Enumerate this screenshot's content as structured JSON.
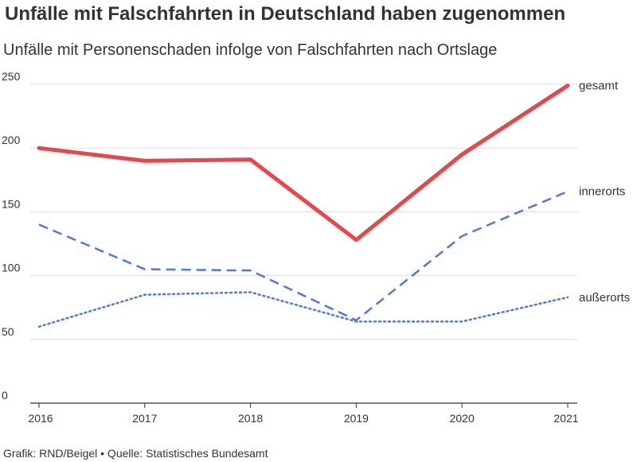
{
  "title": "Unfälle mit Falschfahrten in Deutschland haben zugenommen",
  "subtitle": "Unfälle mit Personenschaden infolge von Falschfahrten nach Ortslage",
  "footer": "Grafik: RND/Beigel • Quelle: Statistisches Bundesamt",
  "chart_data": {
    "type": "line",
    "title": "Unfälle mit Falschfahrten in Deutschland haben zugenommen",
    "subtitle": "Unfälle mit Personenschaden infolge von Falschfahrten nach Ortslage",
    "x": [
      "2016",
      "2017",
      "2018",
      "2019",
      "2020",
      "2021"
    ],
    "ylim": [
      0,
      250
    ],
    "yticks": [
      0,
      50,
      100,
      150,
      200,
      250
    ],
    "grid": true,
    "legend": "inline-right",
    "series": [
      {
        "name": "gesamt",
        "values": [
          200,
          190,
          191,
          128,
          195,
          249
        ],
        "color": "#e8464b",
        "style": "solid"
      },
      {
        "name": "innerorts",
        "values": [
          140,
          105,
          104,
          65,
          131,
          166
        ],
        "color": "#4a79e8",
        "style": "dashed"
      },
      {
        "name": "außerorts",
        "values": [
          60,
          85,
          87,
          64,
          64,
          83
        ],
        "color": "#4a79e8",
        "style": "dotted"
      }
    ]
  }
}
